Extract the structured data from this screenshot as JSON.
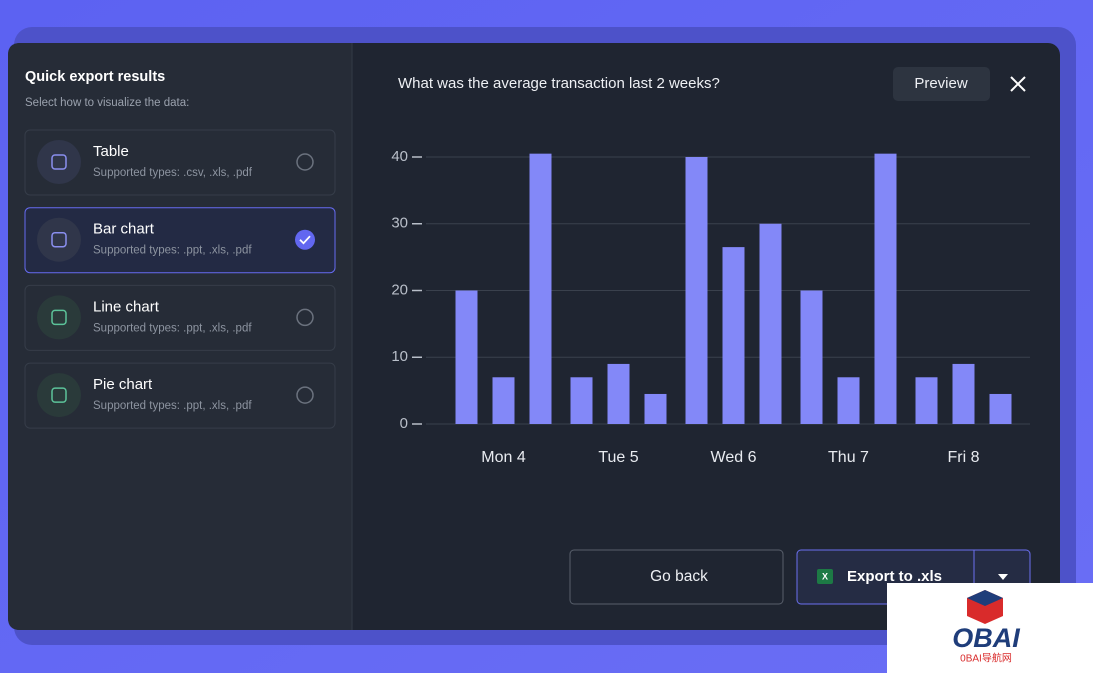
{
  "panel": {
    "title": "Quick export results",
    "subtitle": "Select how to visualize the data:",
    "options": [
      {
        "label": "Table",
        "types": "Supported types: .csv, .xls, .pdf",
        "selected": false
      },
      {
        "label": "Bar chart",
        "types": "Supported types: .ppt, .xls, .pdf",
        "selected": true
      },
      {
        "label": "Line chart",
        "types": "Supported types: .ppt, .xls, .pdf",
        "selected": false
      },
      {
        "label": "Pie chart",
        "types": "Supported types: .ppt, .xls, .pdf",
        "selected": false
      }
    ]
  },
  "question": "What was the average transaction last 2 weeks?",
  "preview": "Preview",
  "buttons": {
    "back": "Go back",
    "export": "Export to .xls"
  },
  "watermark": {
    "logo": "OBAI",
    "caption": "0BAI导航网"
  },
  "chart_data": {
    "type": "bar",
    "categories": [
      "Mon 4",
      "Tue 5",
      "Wed 6",
      "Thu 7",
      "Fri 8"
    ],
    "series": [
      {
        "color": "#8388f8",
        "values": [
          20,
          7,
          40,
          20,
          7
        ]
      },
      {
        "color": "#8388f8",
        "values": [
          7,
          9,
          26.5,
          7,
          9
        ]
      },
      {
        "color": "#8388f8",
        "values": [
          40.5,
          4.5,
          30,
          40.5,
          4.5
        ]
      }
    ],
    "ylim": [
      0,
      40
    ],
    "yticks": [
      0,
      10,
      20,
      30,
      40
    ],
    "grid": true
  }
}
